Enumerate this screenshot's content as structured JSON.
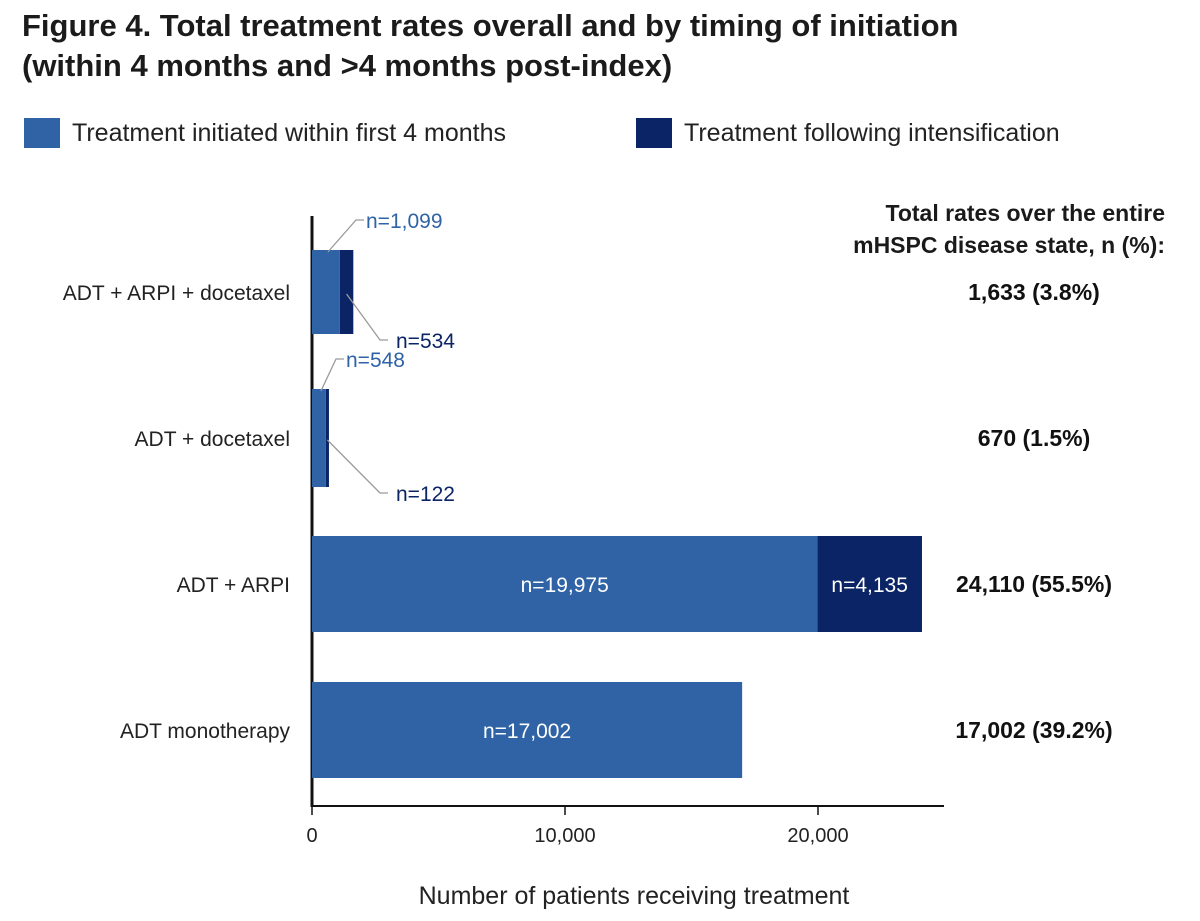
{
  "figure": {
    "title_line1": "Figure 4. Total treatment rates overall and by timing of initiation",
    "title_line2": "(within 4 months and >4 months post-index)"
  },
  "legend": [
    {
      "label": "Treatment initiated within first 4 months",
      "color": "#2f63a6"
    },
    {
      "label": "Treatment following intensification",
      "color": "#0a2466"
    }
  ],
  "totals_header": {
    "line1": "Total rates over the entire",
    "line2": "mHSPC disease state, n (%):"
  },
  "chart_data": {
    "type": "bar",
    "orientation": "horizontal",
    "stacked": true,
    "categories": [
      "ADT + ARPI + docetaxel",
      "ADT + docetaxel",
      "ADT + ARPI",
      "ADT monotherapy"
    ],
    "series": [
      {
        "name": "Treatment initiated within first 4 months",
        "values": [
          1099,
          548,
          19975,
          17002
        ],
        "labels": [
          "n=1,099",
          "n=548",
          "n=19,975",
          "n=17,002"
        ],
        "color": "#2f63a6"
      },
      {
        "name": "Treatment following intensification",
        "values": [
          534,
          122,
          4135,
          0
        ],
        "labels": [
          "n=534",
          "n=122",
          "n=4,135",
          ""
        ],
        "color": "#0a2466"
      }
    ],
    "totals": [
      "1,633 (3.8%)",
      "670 (1.5%)",
      "24,110 (55.5%)",
      "17,002 (39.2%)"
    ],
    "xlabel": "Number of patients receiving treatment",
    "xticks": [
      0,
      10000,
      20000
    ],
    "xtick_labels": [
      "0",
      "10,000",
      "20,000"
    ],
    "xlim": [
      0,
      25000
    ],
    "grid": false,
    "legend_position": "top"
  }
}
